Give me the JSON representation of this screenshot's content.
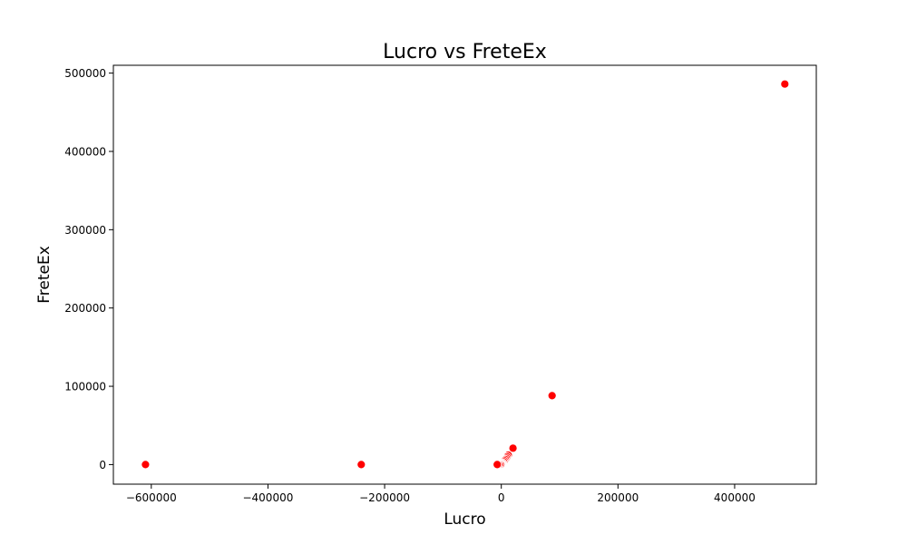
{
  "chart_data": {
    "type": "scatter",
    "title": "Lucro vs FreteEx",
    "xlabel": "Lucro",
    "ylabel": "FreteEx",
    "xlim": [
      -665000,
      540000
    ],
    "ylim": [
      -25000,
      510000
    ],
    "xticks": [
      -600000,
      -400000,
      -200000,
      0,
      200000,
      400000
    ],
    "xtick_labels": [
      "−600000",
      "−400000",
      "−200000",
      "0",
      "200000",
      "400000"
    ],
    "yticks": [
      0,
      100000,
      200000,
      300000,
      400000,
      500000
    ],
    "ytick_labels": [
      "0",
      "100000",
      "200000",
      "300000",
      "400000",
      "500000"
    ],
    "grid": false,
    "marker_color": "#ff0000",
    "marker_edge_color": "#ffffff",
    "points": [
      {
        "x": -610000,
        "y": 0
      },
      {
        "x": -240000,
        "y": 0
      },
      {
        "x": 486000,
        "y": 486000
      },
      {
        "x": 87000,
        "y": 88000
      },
      {
        "x": 20000,
        "y": 21000
      },
      {
        "x": 12000,
        "y": 12000
      },
      {
        "x": 10000,
        "y": 10000
      },
      {
        "x": 8500,
        "y": 8000
      },
      {
        "x": 7000,
        "y": 6500
      },
      {
        "x": 5500,
        "y": 5000
      },
      {
        "x": 4000,
        "y": 3500
      },
      {
        "x": 2500,
        "y": 2000
      },
      {
        "x": 1500,
        "y": 1200
      },
      {
        "x": 800,
        "y": 500
      },
      {
        "x": 300,
        "y": 200
      },
      {
        "x": 0,
        "y": 0
      },
      {
        "x": -1000,
        "y": 100
      },
      {
        "x": -3000,
        "y": 0
      },
      {
        "x": -5000,
        "y": 0
      },
      {
        "x": -7000,
        "y": 0
      }
    ]
  }
}
